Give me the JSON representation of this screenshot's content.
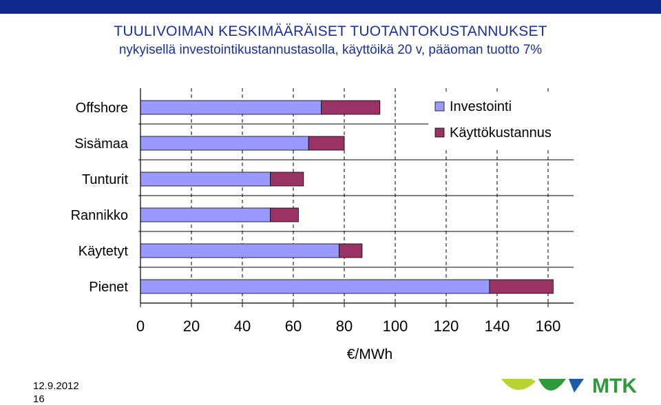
{
  "header": {
    "title": "TUULIVOIMAN KESKIMÄÄRÄISET TUOTANTOKUSTANNUKSET",
    "subtitle": "nykyisellä investointikustannustasolla, käyttöikä 20 v, pääoman tuotto 7%"
  },
  "colors": {
    "top_bar": "#0d2a8c",
    "title": "#1a2f9e",
    "investointi": "#9999ff",
    "kayttokustannus": "#993366"
  },
  "chart_data": {
    "type": "bar",
    "orientation": "horizontal",
    "stacked": true,
    "categories": [
      "Offshore",
      "Sisämaa",
      "Tunturit",
      "Rannikko",
      "Käytetyt",
      "Pienet"
    ],
    "series": [
      {
        "name": "Investointi",
        "color": "#9999ff",
        "values": [
          71,
          66,
          51,
          51,
          78,
          137
        ]
      },
      {
        "name": "Käyttökustannus",
        "color": "#993366",
        "values": [
          23,
          14,
          13,
          11,
          9,
          25
        ]
      }
    ],
    "xlabel": "€/MWh",
    "xlim": [
      0,
      170
    ],
    "xticks": [
      0,
      20,
      40,
      60,
      80,
      100,
      120,
      140,
      160
    ],
    "grid": "vertical dashed gridlines at each tick",
    "legend": "top-right"
  },
  "footer": {
    "date": "12.9.2012",
    "page": "16"
  },
  "logo": {
    "text": "MTK",
    "colors": [
      "#b8d432",
      "#2e9a3c",
      "#1e5aa8"
    ]
  }
}
